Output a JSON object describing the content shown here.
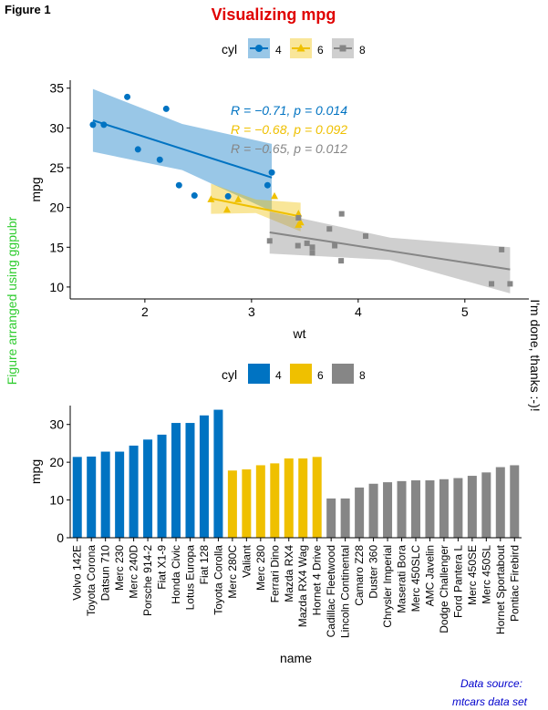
{
  "figure_label": "Figure 1",
  "title": "Visualizing mpg",
  "left_caption": "Figure arranged using ggpubr",
  "right_caption": "I'm done, thanks :-)!",
  "source_line1": "Data source:",
  "source_line2": "mtcars data set",
  "colors": {
    "4": "#0073C2",
    "6": "#EFC000",
    "8": "#868686",
    "title": "#E00000",
    "left_caption": "#2ECC2E",
    "source": "#0000CC"
  },
  "chart_data": [
    {
      "type": "scatter",
      "xlabel": "wt",
      "ylabel": "mpg",
      "xlim": [
        1.3,
        5.6
      ],
      "ylim": [
        8.5,
        36
      ],
      "xticks": [
        2,
        3,
        4,
        5
      ],
      "yticks": [
        10,
        15,
        20,
        25,
        30,
        35
      ],
      "legend_title": "cyl",
      "legend_position": "top",
      "grid": false,
      "series": [
        {
          "name": "4",
          "marker": "circle",
          "points": [
            [
              2.32,
              22.8
            ],
            [
              3.19,
              24.4
            ],
            [
              3.15,
              22.8
            ],
            [
              2.2,
              32.4
            ],
            [
              1.615,
              30.4
            ],
            [
              1.835,
              33.9
            ],
            [
              2.465,
              21.5
            ],
            [
              1.935,
              27.3
            ],
            [
              2.14,
              26
            ],
            [
              1.513,
              30.4
            ],
            [
              2.78,
              21.4
            ]
          ],
          "fit": [
            [
              1.513,
              30.95
            ],
            [
              3.19,
              23.76
            ]
          ],
          "band": [
            [
              1.513,
              34.9,
              27.0
            ],
            [
              2.35,
              30.5,
              24.7
            ],
            [
              3.19,
              28.0,
              19.5
            ]
          ],
          "annotation": "R = −0.71, p = 0.014"
        },
        {
          "name": "6",
          "marker": "triangle",
          "points": [
            [
              2.62,
              21
            ],
            [
              2.875,
              21
            ],
            [
              3.215,
              21.4
            ],
            [
              3.46,
              18.1
            ],
            [
              3.44,
              19.2
            ],
            [
              3.44,
              17.8
            ],
            [
              2.77,
              19.7
            ]
          ],
          "fit": [
            [
              2.62,
              21.13
            ],
            [
              3.46,
              18.87
            ]
          ],
          "band": [
            [
              2.62,
              23.0,
              19.2
            ],
            [
              3.04,
              21.0,
              19.3
            ],
            [
              3.46,
              20.6,
              17.0
            ]
          ],
          "annotation": "R = −0.68, p = 0.092"
        },
        {
          "name": "8",
          "marker": "square",
          "points": [
            [
              3.44,
              18.7
            ],
            [
              3.57,
              14.3
            ],
            [
              4.07,
              16.4
            ],
            [
              3.73,
              17.3
            ],
            [
              3.78,
              15.2
            ],
            [
              5.25,
              10.4
            ],
            [
              5.424,
              10.4
            ],
            [
              5.345,
              14.7
            ],
            [
              3.52,
              15.5
            ],
            [
              3.435,
              15.2
            ],
            [
              3.84,
              13.3
            ],
            [
              3.845,
              19.2
            ],
            [
              3.17,
              15.8
            ],
            [
              3.57,
              15
            ]
          ],
          "fit": [
            [
              3.17,
              16.87
            ],
            [
              5.424,
              12.21
            ]
          ],
          "band": [
            [
              3.17,
              19.5,
              14.2
            ],
            [
              4.3,
              16.2,
              13.4
            ],
            [
              5.424,
              15.0,
              9.2
            ]
          ],
          "annotation": "R = −0.65, p = 0.012"
        }
      ]
    },
    {
      "type": "bar",
      "xlabel": "name",
      "ylabel": "mpg",
      "ylim": [
        0,
        35
      ],
      "yticks": [
        0,
        10,
        20,
        30
      ],
      "legend_title": "cyl",
      "legend_position": "top",
      "grid": false,
      "categories": [
        "Volvo 142E",
        "Toyota Corona",
        "Datsun 710",
        "Merc 230",
        "Merc 240D",
        "Porsche 914-2",
        "Fiat X1-9",
        "Honda Civic",
        "Lotus Europa",
        "Fiat 128",
        "Toyota Corolla",
        "Merc 280C",
        "Valiant",
        "Merc 280",
        "Ferrari Dino",
        "Mazda RX4",
        "Mazda RX4 Wag",
        "Hornet 4 Drive",
        "Cadillac Fleetwood",
        "Lincoln Continental",
        "Camaro Z28",
        "Duster 360",
        "Chrysler Imperial",
        "Maserati Bora",
        "Merc 450SLC",
        "AMC Javelin",
        "Dodge Challenger",
        "Ford Pantera L",
        "Merc 450SE",
        "Merc 450SL",
        "Hornet Sportabout",
        "Pontiac Firebird"
      ],
      "values": [
        21.4,
        21.5,
        22.8,
        22.8,
        24.4,
        26,
        27.3,
        30.4,
        30.4,
        32.4,
        33.9,
        17.8,
        18.1,
        19.2,
        19.7,
        21,
        21,
        21.4,
        10.4,
        10.4,
        13.3,
        14.3,
        14.7,
        15,
        15.2,
        15.2,
        15.5,
        15.8,
        16.4,
        17.3,
        18.7,
        19.2
      ],
      "groups": [
        "4",
        "4",
        "4",
        "4",
        "4",
        "4",
        "4",
        "4",
        "4",
        "4",
        "4",
        "6",
        "6",
        "6",
        "6",
        "6",
        "6",
        "6",
        "8",
        "8",
        "8",
        "8",
        "8",
        "8",
        "8",
        "8",
        "8",
        "8",
        "8",
        "8",
        "8",
        "8"
      ]
    }
  ]
}
